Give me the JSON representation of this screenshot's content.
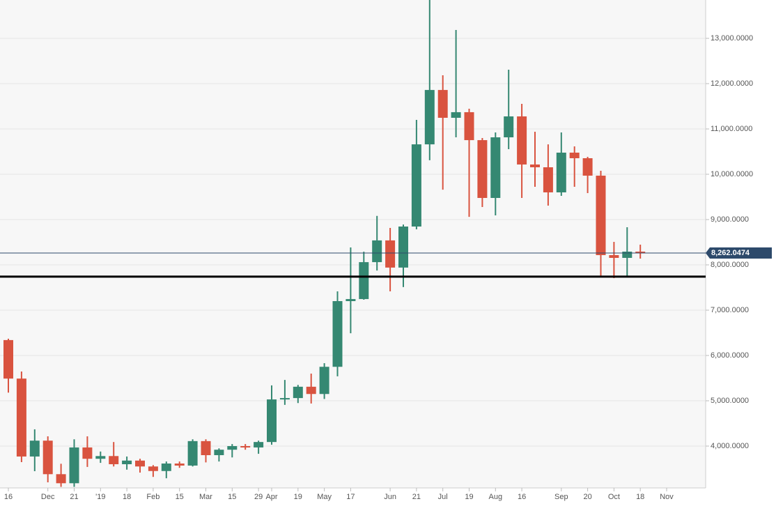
{
  "chart_data": {
    "type": "candlestick",
    "categories": [
      "16",
      null,
      null,
      "Dec",
      null,
      "21",
      null,
      "'19",
      null,
      "18",
      null,
      "Feb",
      null,
      "15",
      null,
      "Mar",
      null,
      "15",
      null,
      "29",
      "Apr",
      null,
      "19",
      null,
      "May",
      null,
      "17",
      null,
      null,
      "Jun",
      null,
      "21",
      null,
      "Jul",
      null,
      "19",
      null,
      "Aug",
      null,
      "16",
      null,
      null,
      "Sep",
      null,
      "20",
      null,
      "Oct",
      null,
      "18",
      null,
      "Nov"
    ],
    "open": [
      6340,
      5490,
      3770,
      4120,
      3380,
      3180,
      3970,
      3720,
      3780,
      3600,
      3680,
      3550,
      3450,
      3615,
      3570,
      4110,
      3800,
      3920,
      4000,
      3970,
      4090,
      5030,
      5060,
      5310,
      5150,
      5750,
      7200,
      7245,
      8060,
      8540,
      7940,
      8846,
      10660,
      11860,
      11246,
      11370,
      10753,
      9477,
      10815,
      11277,
      10215,
      10154,
      9600,
      10477,
      10354,
      9969,
      8215,
      8154,
      8292,
      null,
      null
    ],
    "high": [
      6370,
      5646,
      4370,
      4215,
      3610,
      4150,
      4215,
      3880,
      4090,
      3770,
      3720,
      3580,
      3660,
      3660,
      4150,
      4150,
      3950,
      4045,
      4045,
      4120,
      5340,
      5460,
      5350,
      5600,
      5830,
      7415,
      8385,
      8290,
      9080,
      8815,
      8890,
      11200,
      13846,
      12184,
      13185,
      11446,
      10800,
      10923,
      12308,
      11553,
      10938,
      10660,
      10923,
      10615,
      10384,
      10077,
      8507,
      8830,
      8446,
      null,
      null
    ],
    "low": [
      5180,
      3646,
      3446,
      3200,
      3100,
      3100,
      3540,
      3630,
      3550,
      3480,
      3415,
      3320,
      3290,
      3520,
      3550,
      3640,
      3660,
      3750,
      3920,
      3830,
      4030,
      4910,
      4950,
      4940,
      5040,
      5540,
      6490,
      7230,
      7875,
      7415,
      7510,
      8785,
      10310,
      9660,
      10815,
      9060,
      9277,
      9092,
      10554,
      9477,
      9723,
      9307,
      9523,
      9723,
      9584,
      7723,
      7707,
      7738,
      8138,
      null,
      null
    ],
    "close": [
      5490,
      3770,
      4120,
      3380,
      3180,
      3970,
      3720,
      3780,
      3600,
      3680,
      3550,
      3450,
      3615,
      3570,
      4110,
      3800,
      3920,
      4000,
      3970,
      4090,
      5030,
      5060,
      5310,
      5150,
      5750,
      7200,
      7245,
      8060,
      8540,
      7940,
      8846,
      10660,
      11860,
      11246,
      11370,
      10753,
      9477,
      10815,
      11277,
      10215,
      10154,
      9600,
      10477,
      10354,
      9969,
      8215,
      8154,
      8292,
      8262,
      null,
      null
    ],
    "up_color": "#358872",
    "down_color": "#d9533f",
    "ylim": [
      3077,
      13846
    ],
    "yticks": [
      {
        "value": 4000,
        "label": "4,000.0000"
      },
      {
        "value": 5000,
        "label": "5,000.0000"
      },
      {
        "value": 6000,
        "label": "6,000.0000"
      },
      {
        "value": 7000,
        "label": "7,000.0000"
      },
      {
        "value": 8000,
        "label": "8,000.0000"
      },
      {
        "value": 9000,
        "label": "9,000.0000"
      },
      {
        "value": 10000,
        "label": "10,000.0000"
      },
      {
        "value": 11000,
        "label": "11,000.0000"
      },
      {
        "value": 12000,
        "label": "12,000.0000"
      },
      {
        "value": 13000,
        "label": "13,000.0000"
      }
    ],
    "current_price": {
      "value": 8262.0474,
      "label": "8,262.0474"
    },
    "support_level": 7740,
    "grid": true
  }
}
